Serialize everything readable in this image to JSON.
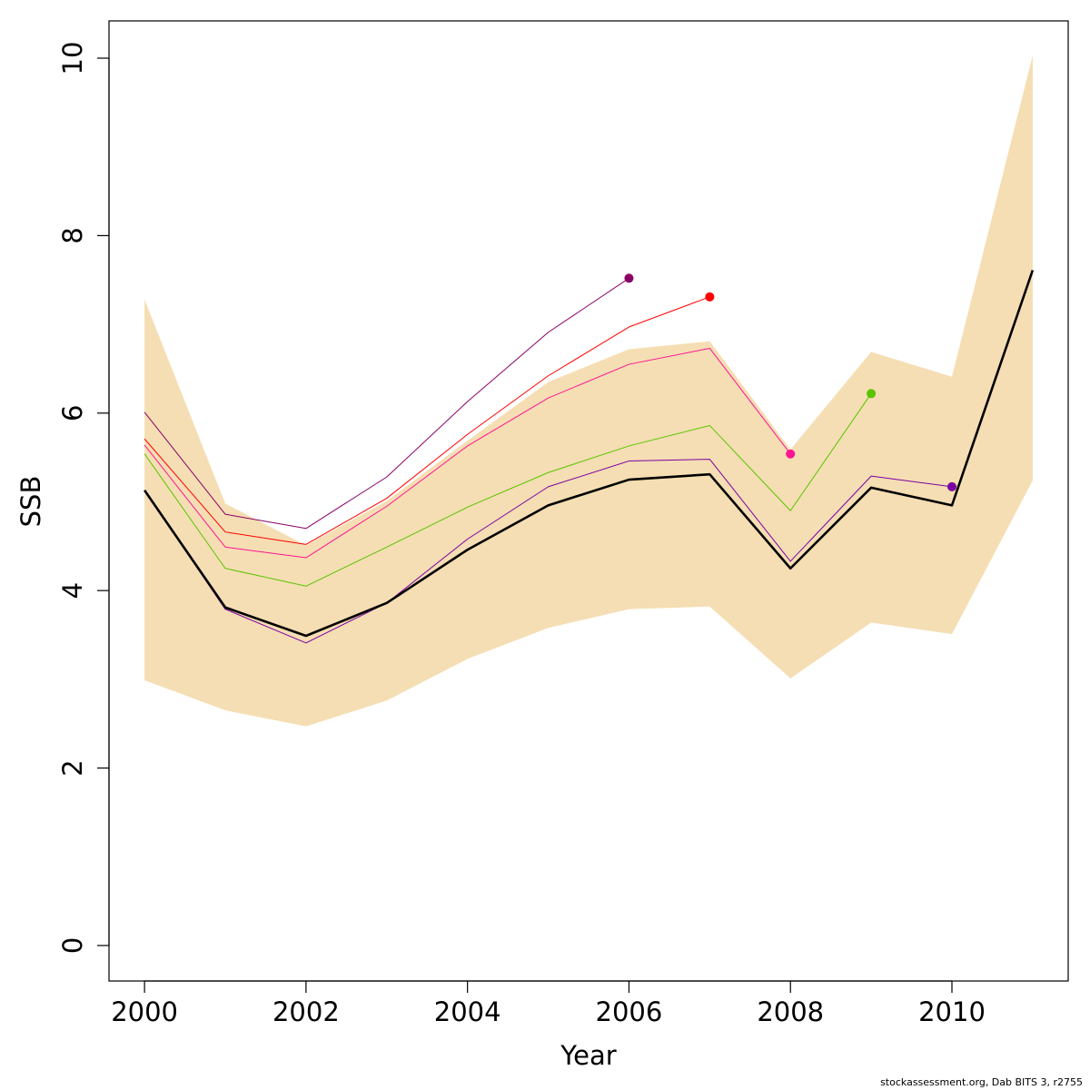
{
  "chart_data": {
    "type": "line",
    "xlabel": "Year",
    "ylabel": "SSB",
    "xlim": [
      1999.56,
      2011.44
    ],
    "ylim": [
      -0.4,
      10.42
    ],
    "x_ticks": [
      2000,
      2002,
      2004,
      2006,
      2008,
      2010
    ],
    "y_ticks": [
      0,
      2,
      4,
      6,
      8,
      10
    ],
    "grid": false,
    "band": {
      "color": "#f5deb3",
      "x": [
        2000,
        2001,
        2002,
        2003,
        2004,
        2005,
        2006,
        2007,
        2008,
        2009,
        2010,
        2011
      ],
      "lower": [
        2.99,
        2.65,
        2.47,
        2.76,
        3.23,
        3.58,
        3.79,
        3.82,
        3.01,
        3.64,
        3.51,
        5.24
      ],
      "upper": [
        7.28,
        4.98,
        4.51,
        5.01,
        5.69,
        6.35,
        6.72,
        6.81,
        5.59,
        6.69,
        6.41,
        10.03
      ]
    },
    "series": [
      {
        "color": "#000000",
        "x": [
          2000,
          2001,
          2002,
          2003,
          2004,
          2005,
          2006,
          2007,
          2008,
          2009,
          2010,
          2011
        ],
        "values": [
          5.13,
          3.81,
          3.49,
          3.86,
          4.46,
          4.96,
          5.25,
          5.31,
          4.25,
          5.16,
          4.96,
          7.61
        ]
      },
      {
        "color": "#7a00a3",
        "x": [
          2000,
          2001,
          2002,
          2003,
          2004,
          2005,
          2006,
          2007,
          2008,
          2009,
          2010
        ],
        "values": [
          5.13,
          3.79,
          3.41,
          3.86,
          4.58,
          5.17,
          5.46,
          5.48,
          4.33,
          5.29,
          5.17
        ]
      },
      {
        "color": "#59c400",
        "x": [
          2000,
          2001,
          2002,
          2003,
          2004,
          2005,
          2006,
          2007,
          2008,
          2009
        ],
        "values": [
          5.54,
          4.25,
          4.05,
          4.49,
          4.94,
          5.33,
          5.63,
          5.86,
          4.9,
          6.22
        ]
      },
      {
        "color": "#ff1493",
        "x": [
          2000,
          2001,
          2002,
          2003,
          2004,
          2005,
          2006,
          2007,
          2008
        ],
        "values": [
          5.64,
          4.49,
          4.37,
          4.95,
          5.63,
          6.17,
          6.55,
          6.73,
          5.54
        ]
      },
      {
        "color": "#ff0000",
        "x": [
          2000,
          2001,
          2002,
          2003,
          2004,
          2005,
          2006,
          2007
        ],
        "values": [
          5.71,
          4.66,
          4.52,
          5.04,
          5.76,
          6.42,
          6.97,
          7.31
        ]
      },
      {
        "color": "#8b0066",
        "x": [
          2000,
          2001,
          2002,
          2003,
          2004,
          2005,
          2006
        ],
        "values": [
          6.01,
          4.86,
          4.7,
          5.28,
          6.13,
          6.91,
          7.52
        ]
      }
    ]
  },
  "footer": "stockassessment.org, Dab BITS 3, r2755"
}
